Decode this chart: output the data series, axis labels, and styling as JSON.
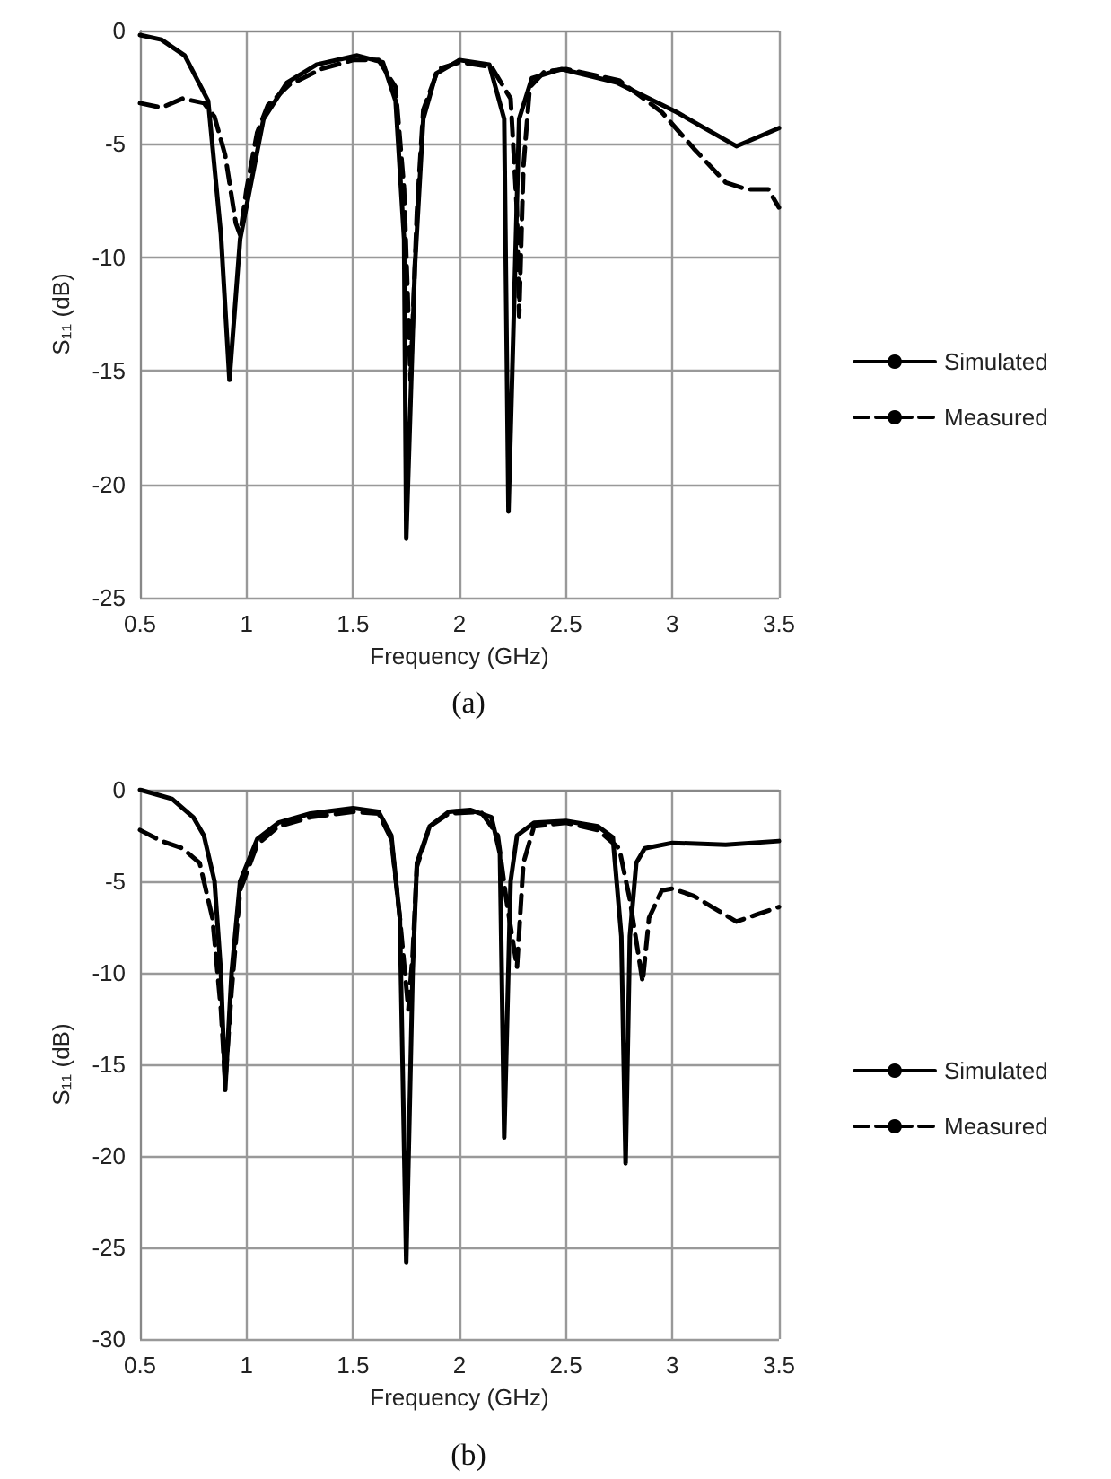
{
  "chart_data": [
    {
      "type": "line",
      "title": "(a)",
      "xlabel": "Frequency (GHz)",
      "ylabel": "S₁₁ (dB)",
      "xlim": [
        0.5,
        3.5
      ],
      "xticks": [
        0.5,
        1,
        1.5,
        2,
        2.5,
        3,
        3.5
      ],
      "ylim": [
        -25,
        0
      ],
      "yticks": [
        -25,
        -20,
        -15,
        -10,
        -5,
        0
      ],
      "grid": true,
      "legend": "right",
      "marker": "none",
      "series": [
        {
          "name": "Simulated",
          "color": "#000000",
          "line_style": "solid",
          "x": [
            0.5,
            0.6,
            0.71,
            0.82,
            0.88,
            0.92,
            0.97,
            1.08,
            1.19,
            1.33,
            1.52,
            1.64,
            1.7,
            1.74,
            1.75,
            1.79,
            1.83,
            1.89,
            2.0,
            2.14,
            2.21,
            2.23,
            2.28,
            2.34,
            2.48,
            2.74,
            3.02,
            3.3,
            3.5
          ],
          "values": [
            -0.2,
            -0.4,
            -1.1,
            -3.1,
            -9,
            -15.4,
            -9.2,
            -3.9,
            -2.3,
            -1.5,
            -1.1,
            -1.4,
            -3.1,
            -9.2,
            -22.4,
            -10.5,
            -3.9,
            -1.9,
            -1.3,
            -1.5,
            -3.9,
            -21.2,
            -3.9,
            -2.1,
            -1.7,
            -2.3,
            -3.6,
            -5.1,
            -4.3
          ]
        },
        {
          "name": "Measured",
          "color": "#000000",
          "line_style": "dashed",
          "x": [
            0.5,
            0.6,
            0.7,
            0.8,
            0.85,
            0.9,
            0.95,
            0.97,
            1.0,
            1.05,
            1.1,
            1.2,
            1.35,
            1.5,
            1.62,
            1.7,
            1.74,
            1.77,
            1.8,
            1.83,
            1.9,
            2.0,
            2.15,
            2.24,
            2.27,
            2.28,
            2.3,
            2.33,
            2.4,
            2.5,
            2.75,
            2.95,
            3.1,
            3.25,
            3.35,
            3.45,
            3.5
          ],
          "values": [
            -3.2,
            -3.4,
            -3.0,
            -3.2,
            -3.8,
            -5.5,
            -8.5,
            -9.0,
            -7.0,
            -4.5,
            -3.3,
            -2.4,
            -1.7,
            -1.3,
            -1.3,
            -2.5,
            -7,
            -15.4,
            -8,
            -3.5,
            -1.7,
            -1.4,
            -1.6,
            -3,
            -8,
            -12.6,
            -6,
            -2.5,
            -1.8,
            -1.7,
            -2.2,
            -3.6,
            -5.2,
            -6.7,
            -7.0,
            -7.0,
            -7.8
          ]
        }
      ]
    },
    {
      "type": "line",
      "title": "(b)",
      "xlabel": "Frequency (GHz)",
      "ylabel": "S₁₁ (dB)",
      "xlim": [
        0.5,
        3.5
      ],
      "xticks": [
        0.5,
        1,
        1.5,
        2,
        2.5,
        3,
        3.5
      ],
      "ylim": [
        -30,
        0
      ],
      "yticks": [
        -30,
        -25,
        -20,
        -15,
        -10,
        -5,
        0
      ],
      "grid": true,
      "legend": "right",
      "marker": "none",
      "series": [
        {
          "name": "Simulated",
          "color": "#000000",
          "line_style": "solid",
          "x": [
            0.5,
            0.65,
            0.75,
            0.8,
            0.85,
            0.88,
            0.9,
            0.93,
            0.97,
            1.05,
            1.15,
            1.3,
            1.5,
            1.62,
            1.68,
            1.72,
            1.75,
            1.78,
            1.8,
            1.86,
            1.95,
            2.05,
            2.15,
            2.19,
            2.21,
            2.24,
            2.27,
            2.35,
            2.5,
            2.65,
            2.72,
            2.76,
            2.78,
            2.8,
            2.83,
            2.87,
            3.0,
            3.25,
            3.5
          ],
          "values": [
            0,
            -0.5,
            -1.5,
            -2.5,
            -5,
            -10,
            -16.4,
            -10,
            -5,
            -2.7,
            -1.8,
            -1.3,
            -1.0,
            -1.2,
            -2.5,
            -7,
            -25.8,
            -10,
            -4,
            -2,
            -1.2,
            -1.1,
            -1.5,
            -3.5,
            -19,
            -5,
            -2.5,
            -1.8,
            -1.7,
            -2.0,
            -2.6,
            -8,
            -20.4,
            -8,
            -4,
            -3.2,
            -2.9,
            -3.0,
            -2.8
          ]
        },
        {
          "name": "Measured",
          "color": "#000000",
          "line_style": "dashed",
          "x": [
            0.5,
            0.6,
            0.7,
            0.78,
            0.84,
            0.88,
            0.9,
            0.93,
            0.97,
            1.05,
            1.15,
            1.3,
            1.5,
            1.62,
            1.68,
            1.72,
            1.76,
            1.78,
            1.8,
            1.86,
            1.95,
            2.1,
            2.18,
            2.22,
            2.27,
            2.3,
            2.35,
            2.5,
            2.65,
            2.75,
            2.8,
            2.84,
            2.86,
            2.89,
            2.95,
            3.0,
            3.1,
            3.2,
            3.3,
            3.4,
            3.5
          ],
          "values": [
            -2.2,
            -2.8,
            -3.2,
            -4,
            -7,
            -12,
            -16,
            -11,
            -5.5,
            -3,
            -2,
            -1.5,
            -1.2,
            -1.3,
            -2.7,
            -7,
            -12,
            -9,
            -4.2,
            -2,
            -1.3,
            -1.2,
            -2.5,
            -6,
            -9.7,
            -4,
            -2,
            -1.8,
            -2.2,
            -3.2,
            -6,
            -9,
            -10.5,
            -7,
            -5.5,
            -5.4,
            -5.8,
            -6.5,
            -7.2,
            -6.8,
            -6.4
          ]
        }
      ]
    }
  ]
}
